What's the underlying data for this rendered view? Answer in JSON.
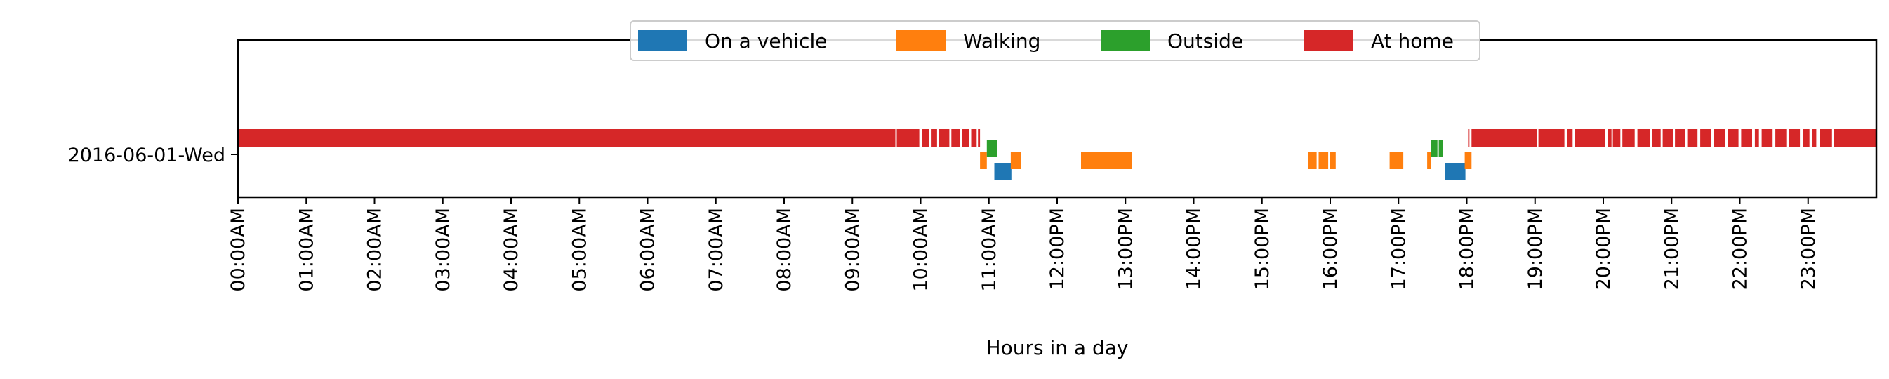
{
  "chart_data": {
    "type": "timeline",
    "xlabel": "Hours in a day",
    "xlim": [
      0,
      24
    ],
    "x_tick_labels": [
      "00:00AM",
      "01:00AM",
      "02:00AM",
      "03:00AM",
      "04:00AM",
      "05:00AM",
      "06:00AM",
      "07:00AM",
      "08:00AM",
      "09:00AM",
      "10:00AM",
      "11:00AM",
      "12:00PM",
      "13:00PM",
      "14:00PM",
      "15:00PM",
      "16:00PM",
      "17:00PM",
      "18:00PM",
      "19:00PM",
      "20:00PM",
      "21:00PM",
      "22:00PM",
      "23:00PM"
    ],
    "y_tick_labels": [
      "2016-06-01-Wed"
    ],
    "legend_position": "top-center",
    "series": [
      {
        "name": "On a vehicle",
        "color": "#1f77b4",
        "intervals": [
          [
            11.08,
            11.33
          ],
          [
            17.68,
            17.98
          ]
        ]
      },
      {
        "name": "Walking",
        "color": "#ff7f0e",
        "intervals": [
          [
            10.87,
            10.97
          ],
          [
            11.32,
            11.47
          ],
          [
            12.35,
            13.1
          ],
          [
            15.68,
            15.8
          ],
          [
            15.83,
            15.97
          ],
          [
            15.99,
            16.08
          ],
          [
            16.87,
            17.07
          ],
          [
            17.42,
            17.48
          ],
          [
            17.97,
            18.07
          ]
        ]
      },
      {
        "name": "Outside",
        "color": "#2ca02c",
        "intervals": [
          [
            10.97,
            11.12
          ],
          [
            17.47,
            17.57
          ],
          [
            17.59,
            17.65
          ]
        ]
      },
      {
        "name": "At home",
        "color": "#d62728",
        "intervals": [
          [
            0.0,
            9.63
          ],
          [
            9.65,
            9.98
          ],
          [
            10.02,
            10.12
          ],
          [
            10.15,
            10.24
          ],
          [
            10.27,
            10.42
          ],
          [
            10.45,
            10.58
          ],
          [
            10.61,
            10.71
          ],
          [
            10.74,
            10.82
          ],
          [
            10.84,
            10.87
          ],
          [
            18.02,
            18.04
          ],
          [
            18.07,
            19.03
          ],
          [
            19.05,
            19.43
          ],
          [
            19.47,
            19.55
          ],
          [
            19.58,
            20.02
          ],
          [
            20.07,
            20.12
          ],
          [
            20.14,
            20.25
          ],
          [
            20.28,
            20.46
          ],
          [
            20.5,
            20.68
          ],
          [
            20.72,
            20.84
          ],
          [
            20.87,
            21.02
          ],
          [
            21.05,
            21.2
          ],
          [
            21.23,
            21.38
          ],
          [
            21.42,
            21.58
          ],
          [
            21.62,
            21.78
          ],
          [
            21.82,
            21.98
          ],
          [
            22.02,
            22.18
          ],
          [
            22.22,
            22.28
          ],
          [
            22.32,
            22.48
          ],
          [
            22.52,
            22.68
          ],
          [
            22.72,
            22.88
          ],
          [
            22.92,
            23.02
          ],
          [
            23.06,
            23.12
          ],
          [
            23.17,
            23.35
          ],
          [
            23.38,
            24.0
          ]
        ]
      }
    ]
  }
}
